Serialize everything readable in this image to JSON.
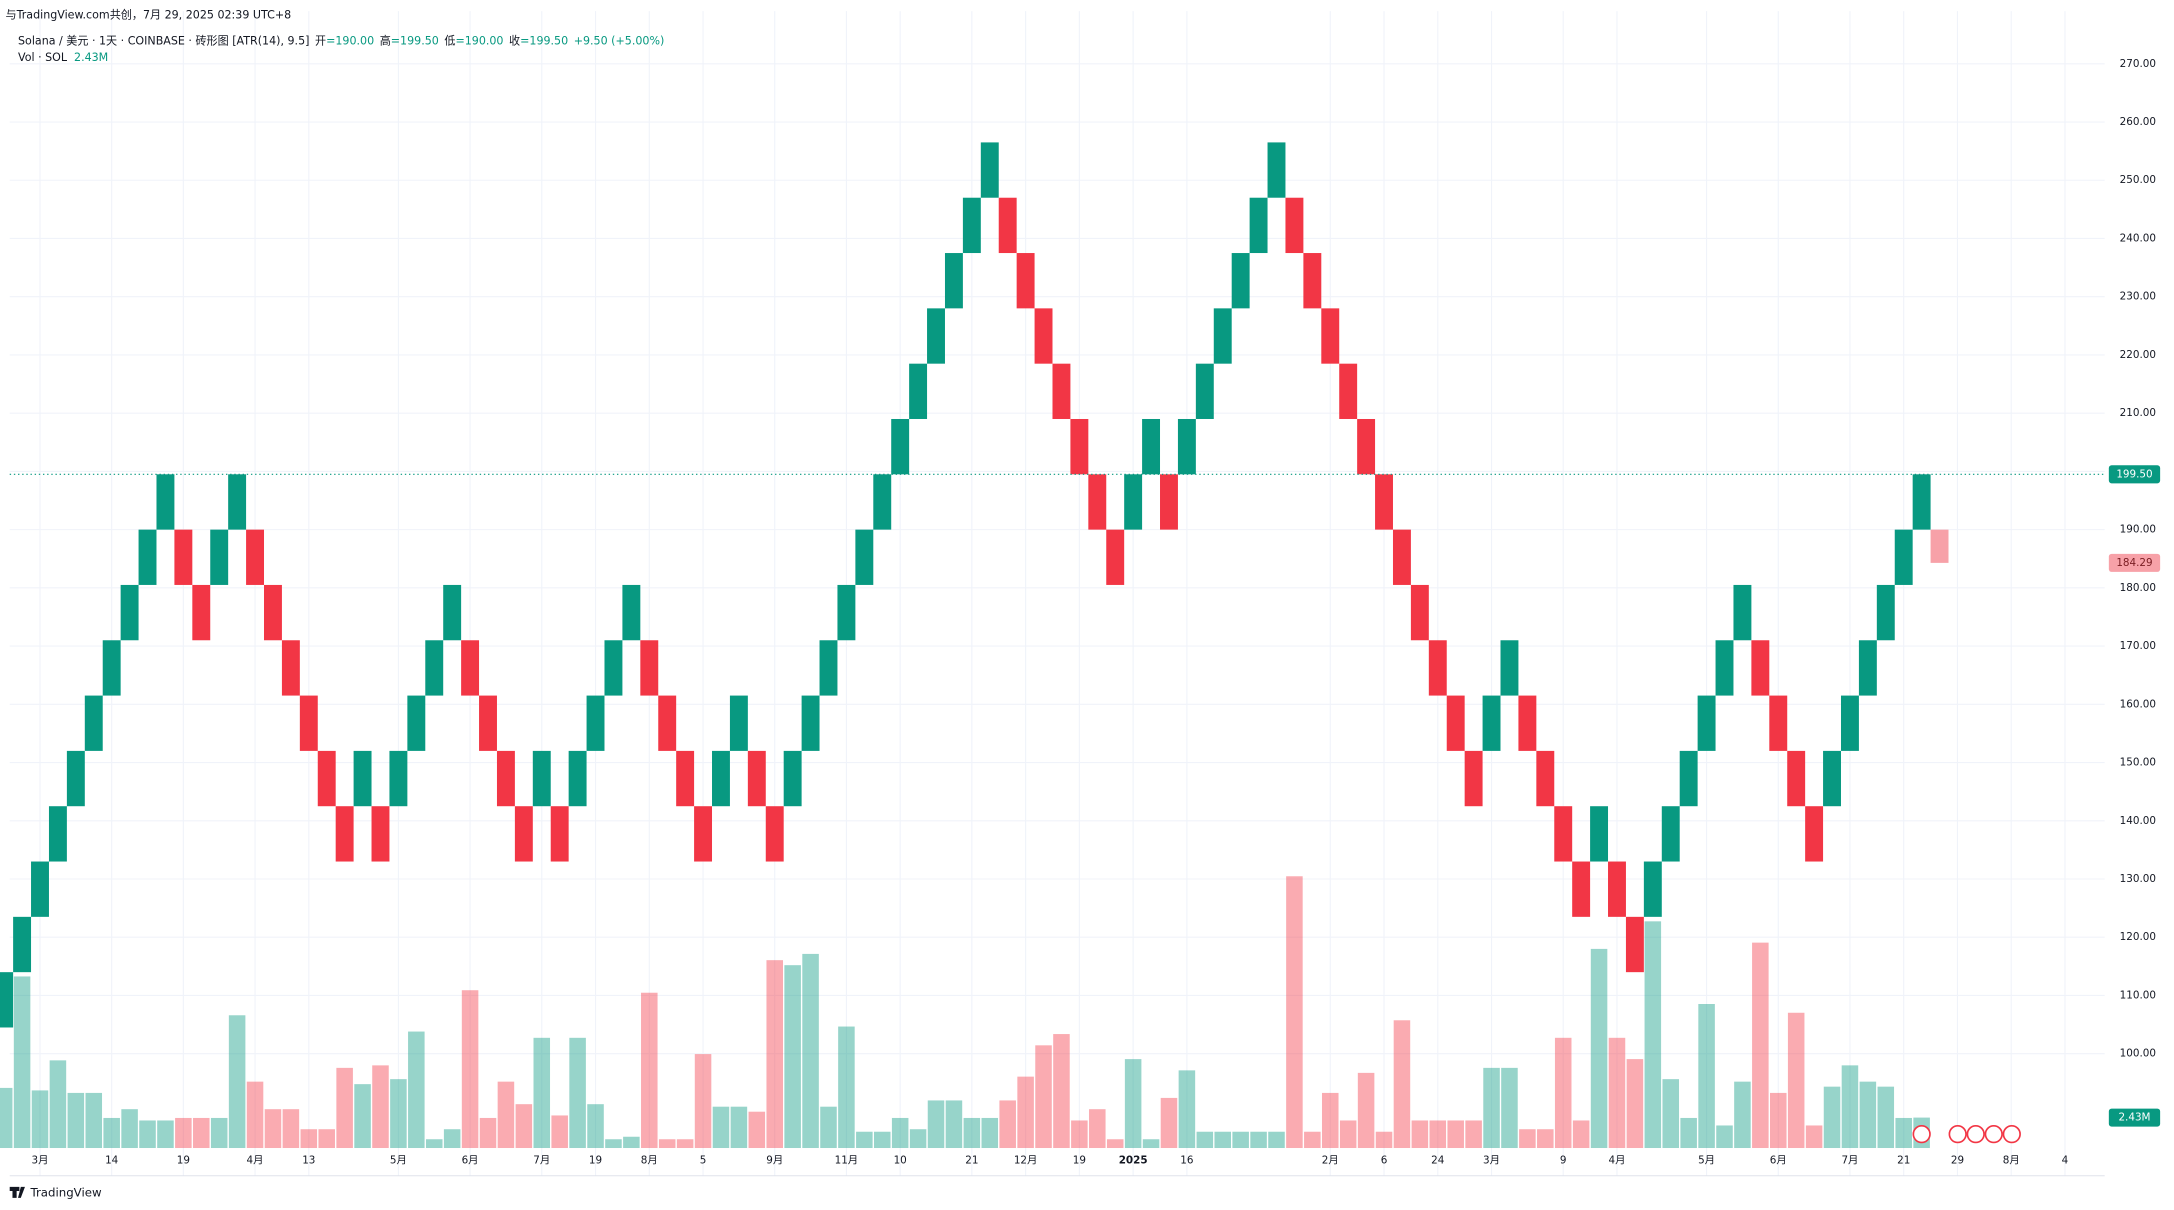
{
  "header": {
    "watermark": "与TradingView.com共创，7月 29, 2025 02:39 UTC+8",
    "symbol": "Solana / 美元 · 1天 · COINBASE · 砖形图 [ATR(14), 9.5]",
    "ohlc": [
      {
        "label": "开",
        "value": "=190.00"
      },
      {
        "label": "高",
        "value": "=199.50"
      },
      {
        "label": "低",
        "value": "=190.00"
      },
      {
        "label": "收",
        "value": "=199.50"
      }
    ],
    "change": "+9.50 (+5.00%)",
    "vol_name": "Vol · SOL",
    "vol_value": "2.43M"
  },
  "footer": {
    "brand": "TradingView"
  },
  "chart_data": {
    "type": "renko",
    "up_color": "#089981",
    "down_color": "#f23645",
    "grid": true,
    "ylim": [
      83.8,
      279.05
    ],
    "yticks": [
      {
        "value": 270,
        "label": "270.00"
      },
      {
        "value": 260,
        "label": "260.00"
      },
      {
        "value": 250,
        "label": "250.00"
      },
      {
        "value": 240,
        "label": "240.00"
      },
      {
        "value": 230,
        "label": "230.00"
      },
      {
        "value": 220,
        "label": "220.00"
      },
      {
        "value": 210,
        "label": "210.00"
      },
      {
        "value": 200,
        "label": "200.00"
      },
      {
        "value": 190,
        "label": "190.00"
      },
      {
        "value": 180,
        "label": "180.00"
      },
      {
        "value": 170,
        "label": "170.00"
      },
      {
        "value": 160,
        "label": "160.00"
      },
      {
        "value": 150,
        "label": "150.00"
      },
      {
        "value": 140,
        "label": "140.00"
      },
      {
        "value": 130,
        "label": "130.00"
      },
      {
        "value": 120,
        "label": "120.00"
      },
      {
        "value": 110,
        "label": "110.00"
      },
      {
        "value": 100,
        "label": "100.00"
      }
    ],
    "categories": [
      null,
      null,
      "3月",
      null,
      null,
      null,
      "14",
      null,
      null,
      null,
      "19",
      null,
      null,
      null,
      "4月",
      null,
      null,
      "13",
      null,
      null,
      null,
      null,
      "5月",
      null,
      null,
      null,
      "6月",
      null,
      null,
      null,
      "7月",
      null,
      null,
      "19",
      null,
      null,
      "8月",
      null,
      null,
      "5",
      null,
      null,
      null,
      "9月",
      null,
      null,
      null,
      "11月",
      null,
      null,
      "10",
      null,
      null,
      null,
      "21",
      null,
      null,
      "12月",
      null,
      null,
      "19",
      null,
      null,
      "2025",
      null,
      null,
      "16",
      null,
      null,
      null,
      null,
      null,
      null,
      null,
      "2月",
      null,
      null,
      "6",
      null,
      null,
      "24",
      null,
      null,
      "3月",
      null,
      null,
      null,
      "9",
      null,
      null,
      "4月",
      null,
      null,
      null,
      null,
      "5月",
      null,
      null,
      null,
      "6月",
      null,
      null,
      null,
      "7月",
      null,
      null,
      "21",
      null
    ],
    "future_categories": [
      null,
      "29",
      null,
      null,
      "8月",
      null,
      null,
      "4"
    ],
    "bricks": {
      "open": [
        104.5,
        114,
        123.5,
        133,
        142.5,
        152,
        161.5,
        171,
        180.5,
        190,
        190,
        180.5,
        180.5,
        190,
        190,
        180.5,
        171,
        161.5,
        152,
        142.5,
        142.5,
        142.5,
        142.5,
        152,
        161.5,
        171,
        171,
        161.5,
        152,
        142.5,
        142.5,
        142.5,
        142.5,
        152,
        161.5,
        171,
        171,
        161.5,
        152,
        142.5,
        142.5,
        152,
        152,
        142.5,
        142.5,
        152,
        161.5,
        171,
        180.5,
        190,
        199.5,
        209,
        218.5,
        228,
        237.5,
        247,
        247,
        237.5,
        228,
        218.5,
        209,
        199.5,
        190,
        190,
        199.5,
        199.5,
        199.5,
        209,
        218.5,
        228,
        237.5,
        247,
        247,
        237.5,
        228,
        218.5,
        209,
        199.5,
        190,
        180.5,
        171,
        161.5,
        152,
        152,
        161.5,
        161.5,
        152,
        142.5,
        133,
        133,
        133,
        123.5,
        123.5,
        133,
        142.5,
        152,
        161.5,
        171,
        171,
        161.5,
        152,
        142.5,
        142.5,
        152,
        161.5,
        171,
        180.5,
        190
      ],
      "close": [
        114,
        123.5,
        133,
        142.5,
        152,
        161.5,
        171,
        180.5,
        190,
        199.5,
        180.5,
        171,
        190,
        199.5,
        180.5,
        171,
        161.5,
        152,
        142.5,
        133,
        152,
        133,
        152,
        161.5,
        171,
        180.5,
        161.5,
        152,
        142.5,
        133,
        152,
        133,
        152,
        161.5,
        171,
        180.5,
        161.5,
        152,
        142.5,
        133,
        152,
        161.5,
        142.5,
        133,
        152,
        161.5,
        171,
        180.5,
        190,
        199.5,
        209,
        218.5,
        228,
        237.5,
        247,
        256.5,
        237.5,
        228,
        218.5,
        209,
        199.5,
        190,
        180.5,
        199.5,
        209,
        190,
        209,
        218.5,
        228,
        237.5,
        247,
        256.5,
        237.5,
        228,
        218.5,
        209,
        199.5,
        190,
        180.5,
        171,
        161.5,
        152,
        142.5,
        161.5,
        171,
        152,
        142.5,
        133,
        123.5,
        142.5,
        123.5,
        114,
        133,
        142.5,
        152,
        161.5,
        171,
        180.5,
        161.5,
        152,
        142.5,
        133,
        152,
        161.5,
        171,
        180.5,
        190,
        199.5
      ]
    },
    "volumes": [
      4.8,
      13.7,
      4.6,
      7.0,
      4.4,
      4.4,
      2.4,
      3.1,
      2.2,
      2.2,
      2.4,
      2.4,
      2.4,
      10.6,
      5.3,
      3.1,
      3.1,
      1.5,
      1.5,
      6.4,
      5.1,
      6.6,
      5.5,
      9.3,
      0.7,
      1.5,
      12.6,
      2.4,
      5.3,
      3.5,
      8.8,
      2.6,
      8.8,
      3.5,
      0.7,
      0.9,
      12.4,
      0.7,
      0.7,
      7.5,
      3.3,
      3.3,
      2.9,
      15.0,
      14.6,
      15.5,
      3.3,
      9.7,
      1.3,
      1.3,
      2.4,
      1.5,
      3.8,
      3.8,
      2.4,
      2.4,
      3.8,
      5.7,
      8.2,
      9.1,
      2.2,
      3.1,
      0.7,
      7.1,
      0.7,
      4.0,
      6.2,
      1.3,
      1.3,
      1.3,
      1.3,
      1.3,
      21.7,
      1.3,
      4.4,
      2.2,
      6.0,
      1.3,
      10.2,
      2.2,
      2.2,
      2.2,
      2.2,
      6.4,
      6.4,
      1.5,
      1.5,
      8.8,
      2.2,
      15.9,
      8.8,
      7.1,
      18.1,
      5.5,
      2.4,
      11.5,
      1.8,
      5.3,
      16.4,
      4.4,
      10.8,
      1.8,
      4.9,
      6.6,
      5.3,
      4.9,
      2.4,
      2.43
    ],
    "last_price_label": "199.50",
    "projection": {
      "open": 190,
      "close": 184.29,
      "label": "184.29",
      "color": "#f7a1a8"
    }
  }
}
